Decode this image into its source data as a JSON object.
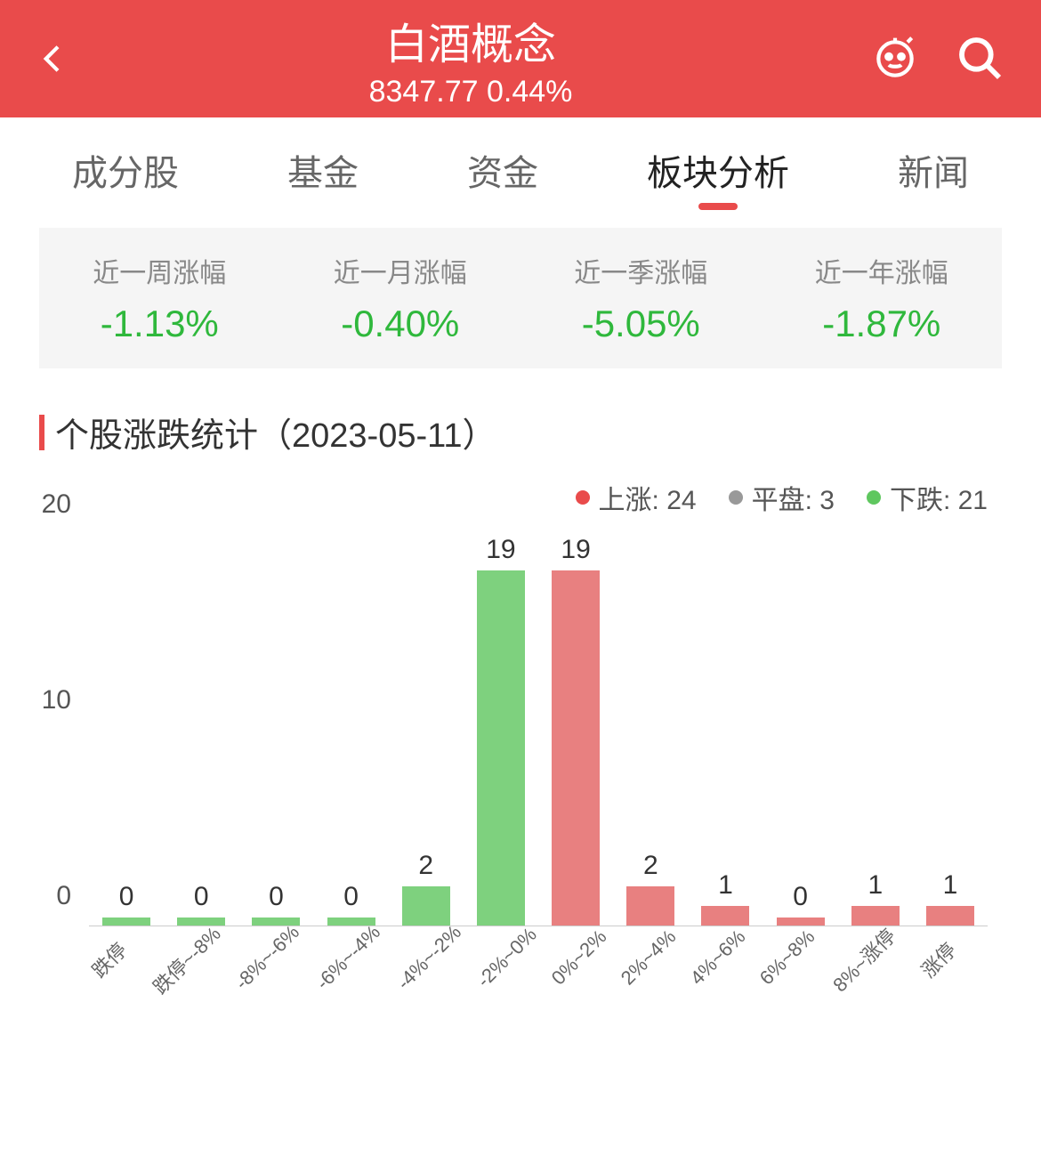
{
  "header": {
    "title": "白酒概念",
    "price": "8347.77",
    "change": "0.44%"
  },
  "tabs": [
    {
      "label": "成分股",
      "active": false
    },
    {
      "label": "基金",
      "active": false
    },
    {
      "label": "资金",
      "active": false
    },
    {
      "label": "板块分析",
      "active": true
    },
    {
      "label": "新闻",
      "active": false
    }
  ],
  "returns": [
    {
      "label": "近一周涨幅",
      "value": "-1.13%"
    },
    {
      "label": "近一月涨幅",
      "value": "-0.40%"
    },
    {
      "label": "近一季涨幅",
      "value": "-5.05%"
    },
    {
      "label": "近一年涨幅",
      "value": "-1.87%"
    }
  ],
  "section_title": "个股涨跌统计（2023-05-11）",
  "legend": [
    {
      "label": "上涨: 24",
      "color": "#e94b4b"
    },
    {
      "label": "平盘: 3",
      "color": "#999999"
    },
    {
      "label": "下跌: 21",
      "color": "#5fc75f"
    }
  ],
  "chart": {
    "type": "bar",
    "ylim": [
      0,
      20
    ],
    "yticks": [
      0,
      10,
      20
    ],
    "up_color": "#e88080",
    "down_color": "#7ed17e",
    "categories": [
      "跌停",
      "跌停~-8%",
      "-8%~-6%",
      "-6%~-4%",
      "-4%~-2%",
      "-2%~0%",
      "0%~2%",
      "2%~4%",
      "4%~6%",
      "6%~8%",
      "8%~涨停",
      "涨停"
    ],
    "values": [
      0,
      0,
      0,
      0,
      2,
      19,
      19,
      2,
      1,
      0,
      1,
      1
    ],
    "directions": [
      "down",
      "down",
      "down",
      "down",
      "down",
      "down",
      "up",
      "up",
      "up",
      "up",
      "up",
      "up"
    ]
  }
}
